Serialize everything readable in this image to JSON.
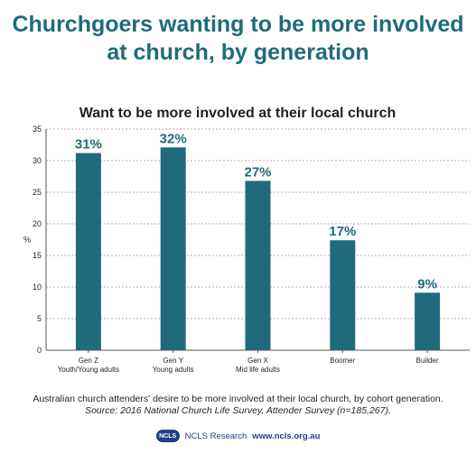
{
  "header": {
    "title_line1": "Churchgoers wanting to be more involved",
    "title_line2": "at church, by generation"
  },
  "chart_data": {
    "type": "bar",
    "title": "Want to be more involved at their local church",
    "ylabel": "%",
    "xlabel": "",
    "ylim": [
      0,
      35
    ],
    "yticks": [
      0,
      5,
      10,
      15,
      20,
      25,
      30,
      35
    ],
    "grid": true,
    "categories": [
      [
        "Gen Z",
        "Youth/Young adults"
      ],
      [
        "Gen Y",
        "Young adults"
      ],
      [
        "Gen X",
        "Mid life adults"
      ],
      [
        "Boomer"
      ],
      [
        "Builder"
      ]
    ],
    "values": [
      31.2,
      32.1,
      26.8,
      17.4,
      9.1
    ],
    "data_labels": [
      "31%",
      "32%",
      "27%",
      "17%",
      "9%"
    ],
    "bar_color": "#1f6b7d",
    "label_color": "#1f6b7d",
    "grid_color": "#c9a3a8"
  },
  "caption": {
    "line1": "Australian church attenders' desire to be more involved at their local church, by cohort generation.",
    "line2": "Source: 2016 National Church Life Survey, Attender Survey  (n=185,267)."
  },
  "footer": {
    "logo_text": "NCLS",
    "org": "NCLS Research",
    "url": "www.ncls.org.au"
  }
}
